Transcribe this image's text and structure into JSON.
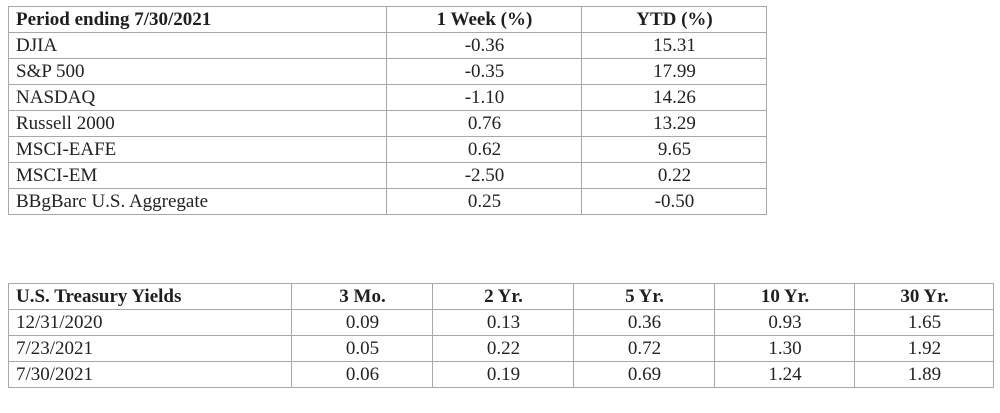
{
  "performance": {
    "headers": [
      "Period ending 7/30/2021",
      "1 Week (%)",
      "YTD (%)"
    ],
    "rows": [
      {
        "name": "DJIA",
        "week": "-0.36",
        "ytd": "15.31"
      },
      {
        "name": "S&P 500",
        "week": "-0.35",
        "ytd": "17.99"
      },
      {
        "name": "NASDAQ",
        "week": "-1.10",
        "ytd": "14.26"
      },
      {
        "name": "Russell 2000",
        "week": "0.76",
        "ytd": "13.29"
      },
      {
        "name": "MSCI-EAFE",
        "week": "0.62",
        "ytd": "9.65"
      },
      {
        "name": "MSCI-EM",
        "week": "-2.50",
        "ytd": "0.22"
      },
      {
        "name": "BBgBarc U.S. Aggregate",
        "week": "0.25",
        "ytd": "-0.50"
      }
    ]
  },
  "treasury": {
    "headers": [
      "U.S. Treasury Yields",
      "3 Mo.",
      "2 Yr.",
      "5 Yr.",
      "10 Yr.",
      "30 Yr."
    ],
    "rows": [
      {
        "date": "12/31/2020",
        "values": [
          "0.09",
          "0.13",
          "0.36",
          "0.93",
          "1.65"
        ]
      },
      {
        "date": "7/23/2021",
        "values": [
          "0.05",
          "0.22",
          "0.72",
          "1.30",
          "1.92"
        ]
      },
      {
        "date": "7/30/2021",
        "values": [
          "0.06",
          "0.19",
          "0.69",
          "1.24",
          "1.89"
        ]
      }
    ]
  }
}
